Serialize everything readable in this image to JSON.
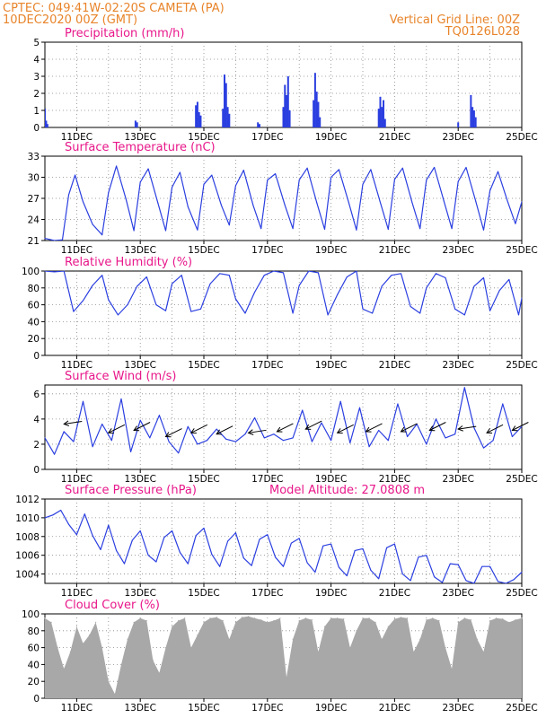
{
  "header": {
    "station_line": "CPTEC:   049:41W-02:20S   CAMETA (PA)",
    "date_line": "10DEC2020 00Z (GMT)",
    "grid_note": "Vertical Grid Line: 00Z",
    "run_code": "TQ0126L028"
  },
  "colors": {
    "header": "#e8842a",
    "panel_title": "#e8178a",
    "line": "#2b3fe0",
    "bar": "#2b3fe0",
    "cloud_fill": "#a8a8a8",
    "grid": "#888888"
  },
  "x_axis": {
    "start": "10DEC2020 00Z",
    "span_days": 15,
    "ticks": [
      {
        "day": 1,
        "label": "11DEC"
      },
      {
        "day": 3,
        "label": "13DEC"
      },
      {
        "day": 5,
        "label": "15DEC"
      },
      {
        "day": 7,
        "label": "17DEC"
      },
      {
        "day": 9,
        "label": "19DEC"
      },
      {
        "day": 11,
        "label": "21DEC"
      },
      {
        "day": 13,
        "label": "23DEC"
      },
      {
        "day": 15,
        "label": "25DEC"
      }
    ]
  },
  "chart_data": [
    {
      "key": "precip",
      "type": "bar",
      "title": "Precipitation (mm/h)",
      "ylim": [
        0,
        5
      ],
      "yticks": [
        "0",
        "1",
        "2",
        "3",
        "4",
        "5"
      ],
      "ytick_values": [
        0,
        1,
        2,
        3,
        4,
        5
      ],
      "unit": "mm/h",
      "x_days": [
        0.0,
        0.04,
        0.08,
        2.85,
        2.9,
        4.75,
        4.8,
        4.85,
        4.9,
        5.6,
        5.65,
        5.7,
        5.75,
        5.8,
        6.7,
        6.75,
        7.5,
        7.55,
        7.6,
        7.65,
        7.7,
        8.45,
        8.5,
        8.55,
        8.6,
        8.65,
        10.5,
        10.55,
        10.6,
        10.65,
        10.7,
        13.0,
        13.4,
        13.45,
        13.5,
        13.55
      ],
      "values": [
        1.1,
        0.4,
        0.2,
        0.4,
        0.3,
        1.3,
        1.5,
        0.9,
        0.7,
        1.1,
        3.1,
        2.6,
        1.2,
        0.8,
        0.3,
        0.2,
        1.2,
        2.5,
        1.9,
        3.0,
        1.0,
        1.6,
        3.2,
        2.1,
        1.5,
        0.6,
        1.1,
        1.8,
        1.2,
        1.6,
        0.5,
        0.3,
        1.9,
        1.2,
        1.0,
        0.6
      ]
    },
    {
      "key": "temp",
      "type": "line",
      "title": "Surface Temperature (nC)",
      "ylim": [
        21,
        33
      ],
      "yticks": [
        "21",
        "24",
        "27",
        "30",
        "33"
      ],
      "ytick_values": [
        21,
        24,
        27,
        30,
        33
      ],
      "unit": "nC",
      "x_days": [
        0,
        0.3,
        0.55,
        0.75,
        0.95,
        1.2,
        1.5,
        1.8,
        2.0,
        2.25,
        2.55,
        2.8,
        3.0,
        3.25,
        3.55,
        3.8,
        4.0,
        4.25,
        4.5,
        4.8,
        5.0,
        5.25,
        5.55,
        5.8,
        6.0,
        6.25,
        6.55,
        6.8,
        7.0,
        7.25,
        7.55,
        7.8,
        8.0,
        8.25,
        8.55,
        8.8,
        9.0,
        9.25,
        9.55,
        9.8,
        10.0,
        10.25,
        10.55,
        10.8,
        11.0,
        11.25,
        11.55,
        11.8,
        12.0,
        12.25,
        12.55,
        12.8,
        13.0,
        13.25,
        13.55,
        13.8,
        14.0,
        14.25,
        14.55,
        14.8,
        15.0
      ],
      "values": [
        21.3,
        21.0,
        21.1,
        27.5,
        30.3,
        26.5,
        23.3,
        21.8,
        27.8,
        31.6,
        26.9,
        22.4,
        29.3,
        31.2,
        26.4,
        22.4,
        28.6,
        30.7,
        25.8,
        22.5,
        29.0,
        30.3,
        26.0,
        23.2,
        28.8,
        31.0,
        26.0,
        22.7,
        29.6,
        30.5,
        26.0,
        22.7,
        29.6,
        31.3,
        26.4,
        22.6,
        30.0,
        31.1,
        26.5,
        22.5,
        29.0,
        31.1,
        26.4,
        22.6,
        29.7,
        31.3,
        26.4,
        22.7,
        29.6,
        31.4,
        26.6,
        22.7,
        29.4,
        31.4,
        26.6,
        22.5,
        28.1,
        30.8,
        26.6,
        23.4,
        26.5
      ]
    },
    {
      "key": "rh",
      "type": "line",
      "title": "Relative Humidity (%)",
      "ylim": [
        0,
        100
      ],
      "yticks": [
        "0",
        "20",
        "40",
        "60",
        "80",
        "100"
      ],
      "ytick_values": [
        0,
        20,
        40,
        60,
        80,
        100
      ],
      "unit": "%",
      "x_days": [
        0,
        0.3,
        0.6,
        0.9,
        1.2,
        1.5,
        1.8,
        2.0,
        2.3,
        2.6,
        2.9,
        3.2,
        3.5,
        3.8,
        4.0,
        4.3,
        4.6,
        4.9,
        5.2,
        5.5,
        5.8,
        6.0,
        6.3,
        6.6,
        6.9,
        7.2,
        7.5,
        7.8,
        8.0,
        8.3,
        8.6,
        8.9,
        9.2,
        9.5,
        9.8,
        10.0,
        10.3,
        10.6,
        10.9,
        11.2,
        11.5,
        11.8,
        12.0,
        12.3,
        12.6,
        12.9,
        13.2,
        13.5,
        13.8,
        14.0,
        14.3,
        14.6,
        14.9,
        15.0
      ],
      "values": [
        100,
        99,
        100,
        52,
        65,
        83,
        95,
        66,
        48,
        60,
        82,
        93,
        60,
        53,
        85,
        95,
        52,
        55,
        85,
        97,
        95,
        67,
        50,
        75,
        95,
        100,
        98,
        50,
        83,
        100,
        98,
        48,
        72,
        93,
        100,
        55,
        50,
        82,
        95,
        97,
        58,
        50,
        80,
        97,
        92,
        55,
        48,
        82,
        92,
        53,
        77,
        90,
        48,
        68
      ]
    },
    {
      "key": "wind",
      "type": "line",
      "title": "Surface Wind (m/s)",
      "ylim": [
        0,
        6.7
      ],
      "yticks": [
        "0",
        "2",
        "4",
        "6"
      ],
      "ytick_values": [
        0,
        2,
        4,
        6
      ],
      "unit": "m/s",
      "x_days": [
        0,
        0.3,
        0.6,
        0.9,
        1.2,
        1.5,
        1.8,
        2.1,
        2.4,
        2.7,
        3.0,
        3.3,
        3.6,
        3.9,
        4.2,
        4.5,
        4.8,
        5.1,
        5.4,
        5.7,
        6.0,
        6.3,
        6.6,
        6.9,
        7.2,
        7.5,
        7.8,
        8.1,
        8.4,
        8.7,
        9.0,
        9.3,
        9.6,
        9.9,
        10.2,
        10.5,
        10.8,
        11.1,
        11.4,
        11.7,
        12.0,
        12.3,
        12.6,
        12.9,
        13.2,
        13.5,
        13.8,
        14.1,
        14.4,
        14.7,
        15.0
      ],
      "values": [
        2.5,
        1.2,
        3.0,
        2.2,
        5.4,
        1.8,
        3.6,
        2.3,
        5.6,
        1.4,
        3.9,
        2.5,
        4.3,
        2.2,
        1.3,
        3.4,
        2.0,
        2.3,
        3.2,
        2.4,
        2.2,
        2.8,
        4.1,
        2.5,
        2.8,
        2.3,
        2.5,
        4.7,
        2.2,
        3.7,
        2.3,
        5.4,
        2.1,
        4.9,
        1.8,
        3.1,
        2.3,
        5.2,
        2.6,
        3.6,
        2.0,
        4.0,
        2.5,
        2.8,
        6.5,
        3.3,
        1.7,
        2.3,
        5.2,
        2.6,
        3.4
      ],
      "wind_arrows": [
        {
          "day": 0.6,
          "dir": "from-E",
          "y": 3.6
        },
        {
          "day": 2.0,
          "dir": "from-NE",
          "y": 2.9
        },
        {
          "day": 2.8,
          "dir": "from-NE",
          "y": 3.1
        },
        {
          "day": 3.8,
          "dir": "from-NE",
          "y": 2.6
        },
        {
          "day": 4.6,
          "dir": "from-NE",
          "y": 2.9
        },
        {
          "day": 5.4,
          "dir": "from-NE",
          "y": 2.8
        },
        {
          "day": 6.4,
          "dir": "from-E",
          "y": 2.9
        },
        {
          "day": 7.3,
          "dir": "from-NE",
          "y": 3.0
        },
        {
          "day": 8.2,
          "dir": "from-NE",
          "y": 3.2
        },
        {
          "day": 9.2,
          "dir": "from-NE",
          "y": 2.9
        },
        {
          "day": 10.1,
          "dir": "from-NE",
          "y": 3.0
        },
        {
          "day": 11.2,
          "dir": "from-NE",
          "y": 3.0
        },
        {
          "day": 12.1,
          "dir": "from-NE",
          "y": 3.1
        },
        {
          "day": 13.0,
          "dir": "from-E",
          "y": 3.2
        },
        {
          "day": 13.9,
          "dir": "from-NE",
          "y": 2.9
        },
        {
          "day": 14.7,
          "dir": "from-NE",
          "y": 3.1
        }
      ]
    },
    {
      "key": "pres",
      "type": "line",
      "title": "Surface Pressure (hPa)",
      "annotation": "Model Altitude: 27.0808 m",
      "ylim": [
        1003,
        1012
      ],
      "yticks": [
        "1004",
        "1006",
        "1008",
        "1010",
        "1012"
      ],
      "ytick_values": [
        1004,
        1006,
        1008,
        1010,
        1012
      ],
      "unit": "hPa",
      "x_days": [
        0,
        0.25,
        0.5,
        0.75,
        1.0,
        1.25,
        1.5,
        1.75,
        2.0,
        2.25,
        2.5,
        2.75,
        3.0,
        3.25,
        3.5,
        3.75,
        4.0,
        4.25,
        4.5,
        4.75,
        5.0,
        5.25,
        5.5,
        5.75,
        6.0,
        6.25,
        6.5,
        6.75,
        7.0,
        7.25,
        7.5,
        7.75,
        8.0,
        8.25,
        8.5,
        8.75,
        9.0,
        9.25,
        9.5,
        9.75,
        10.0,
        10.25,
        10.5,
        10.75,
        11.0,
        11.25,
        11.5,
        11.75,
        12.0,
        12.25,
        12.5,
        12.75,
        13.0,
        13.25,
        13.5,
        13.75,
        14.0,
        14.25,
        14.5,
        14.75,
        15.0
      ],
      "values": [
        1010.0,
        1010.3,
        1010.8,
        1009.3,
        1008.2,
        1010.4,
        1008.1,
        1006.6,
        1009.2,
        1006.5,
        1005.1,
        1007.6,
        1008.6,
        1006.0,
        1005.3,
        1007.9,
        1008.6,
        1006.3,
        1005.1,
        1008.1,
        1008.9,
        1006.1,
        1004.8,
        1007.5,
        1008.4,
        1005.7,
        1004.9,
        1007.7,
        1008.2,
        1005.8,
        1004.8,
        1007.3,
        1007.8,
        1005.2,
        1004.2,
        1007.0,
        1007.2,
        1004.7,
        1003.8,
        1006.5,
        1006.7,
        1004.4,
        1003.5,
        1006.8,
        1007.2,
        1004.0,
        1003.3,
        1005.8,
        1006.0,
        1003.7,
        1003.1,
        1005.1,
        1005.0,
        1003.3,
        1003.0,
        1004.8,
        1004.8,
        1003.2,
        1003.0,
        1003.4,
        1004.2
      ]
    },
    {
      "key": "cloud",
      "type": "area",
      "title": "Cloud Cover (%)",
      "ylim": [
        0,
        100
      ],
      "yticks": [
        "0",
        "20",
        "40",
        "60",
        "80",
        "100"
      ],
      "ytick_values": [
        0,
        20,
        40,
        60,
        80,
        100
      ],
      "unit": "%",
      "x_days": [
        0,
        0.2,
        0.4,
        0.6,
        0.8,
        1.0,
        1.2,
        1.4,
        1.6,
        1.8,
        2.0,
        2.2,
        2.4,
        2.6,
        2.8,
        3.0,
        3.2,
        3.4,
        3.6,
        3.8,
        4.0,
        4.2,
        4.4,
        4.6,
        4.8,
        5.0,
        5.2,
        5.4,
        5.6,
        5.8,
        6.0,
        6.2,
        6.4,
        6.6,
        6.8,
        7.0,
        7.2,
        7.4,
        7.6,
        7.8,
        8.0,
        8.2,
        8.4,
        8.6,
        8.8,
        9.0,
        9.2,
        9.4,
        9.6,
        9.8,
        10.0,
        10.2,
        10.4,
        10.6,
        10.8,
        11.0,
        11.2,
        11.4,
        11.6,
        11.8,
        12.0,
        12.2,
        12.4,
        12.6,
        12.8,
        13.0,
        13.2,
        13.4,
        13.6,
        13.8,
        14.0,
        14.2,
        14.4,
        14.6,
        14.8,
        15.0
      ],
      "values": [
        95,
        90,
        60,
        35,
        55,
        85,
        65,
        75,
        90,
        60,
        20,
        5,
        40,
        70,
        90,
        95,
        92,
        45,
        30,
        60,
        85,
        92,
        95,
        60,
        75,
        90,
        95,
        96,
        92,
        70,
        90,
        96,
        97,
        95,
        93,
        90,
        92,
        95,
        25,
        70,
        92,
        95,
        93,
        55,
        85,
        95,
        95,
        94,
        60,
        80,
        95,
        95,
        90,
        70,
        85,
        94,
        96,
        95,
        55,
        70,
        93,
        95,
        92,
        60,
        35,
        90,
        95,
        93,
        70,
        55,
        92,
        95,
        94,
        90,
        93,
        95
      ]
    }
  ]
}
